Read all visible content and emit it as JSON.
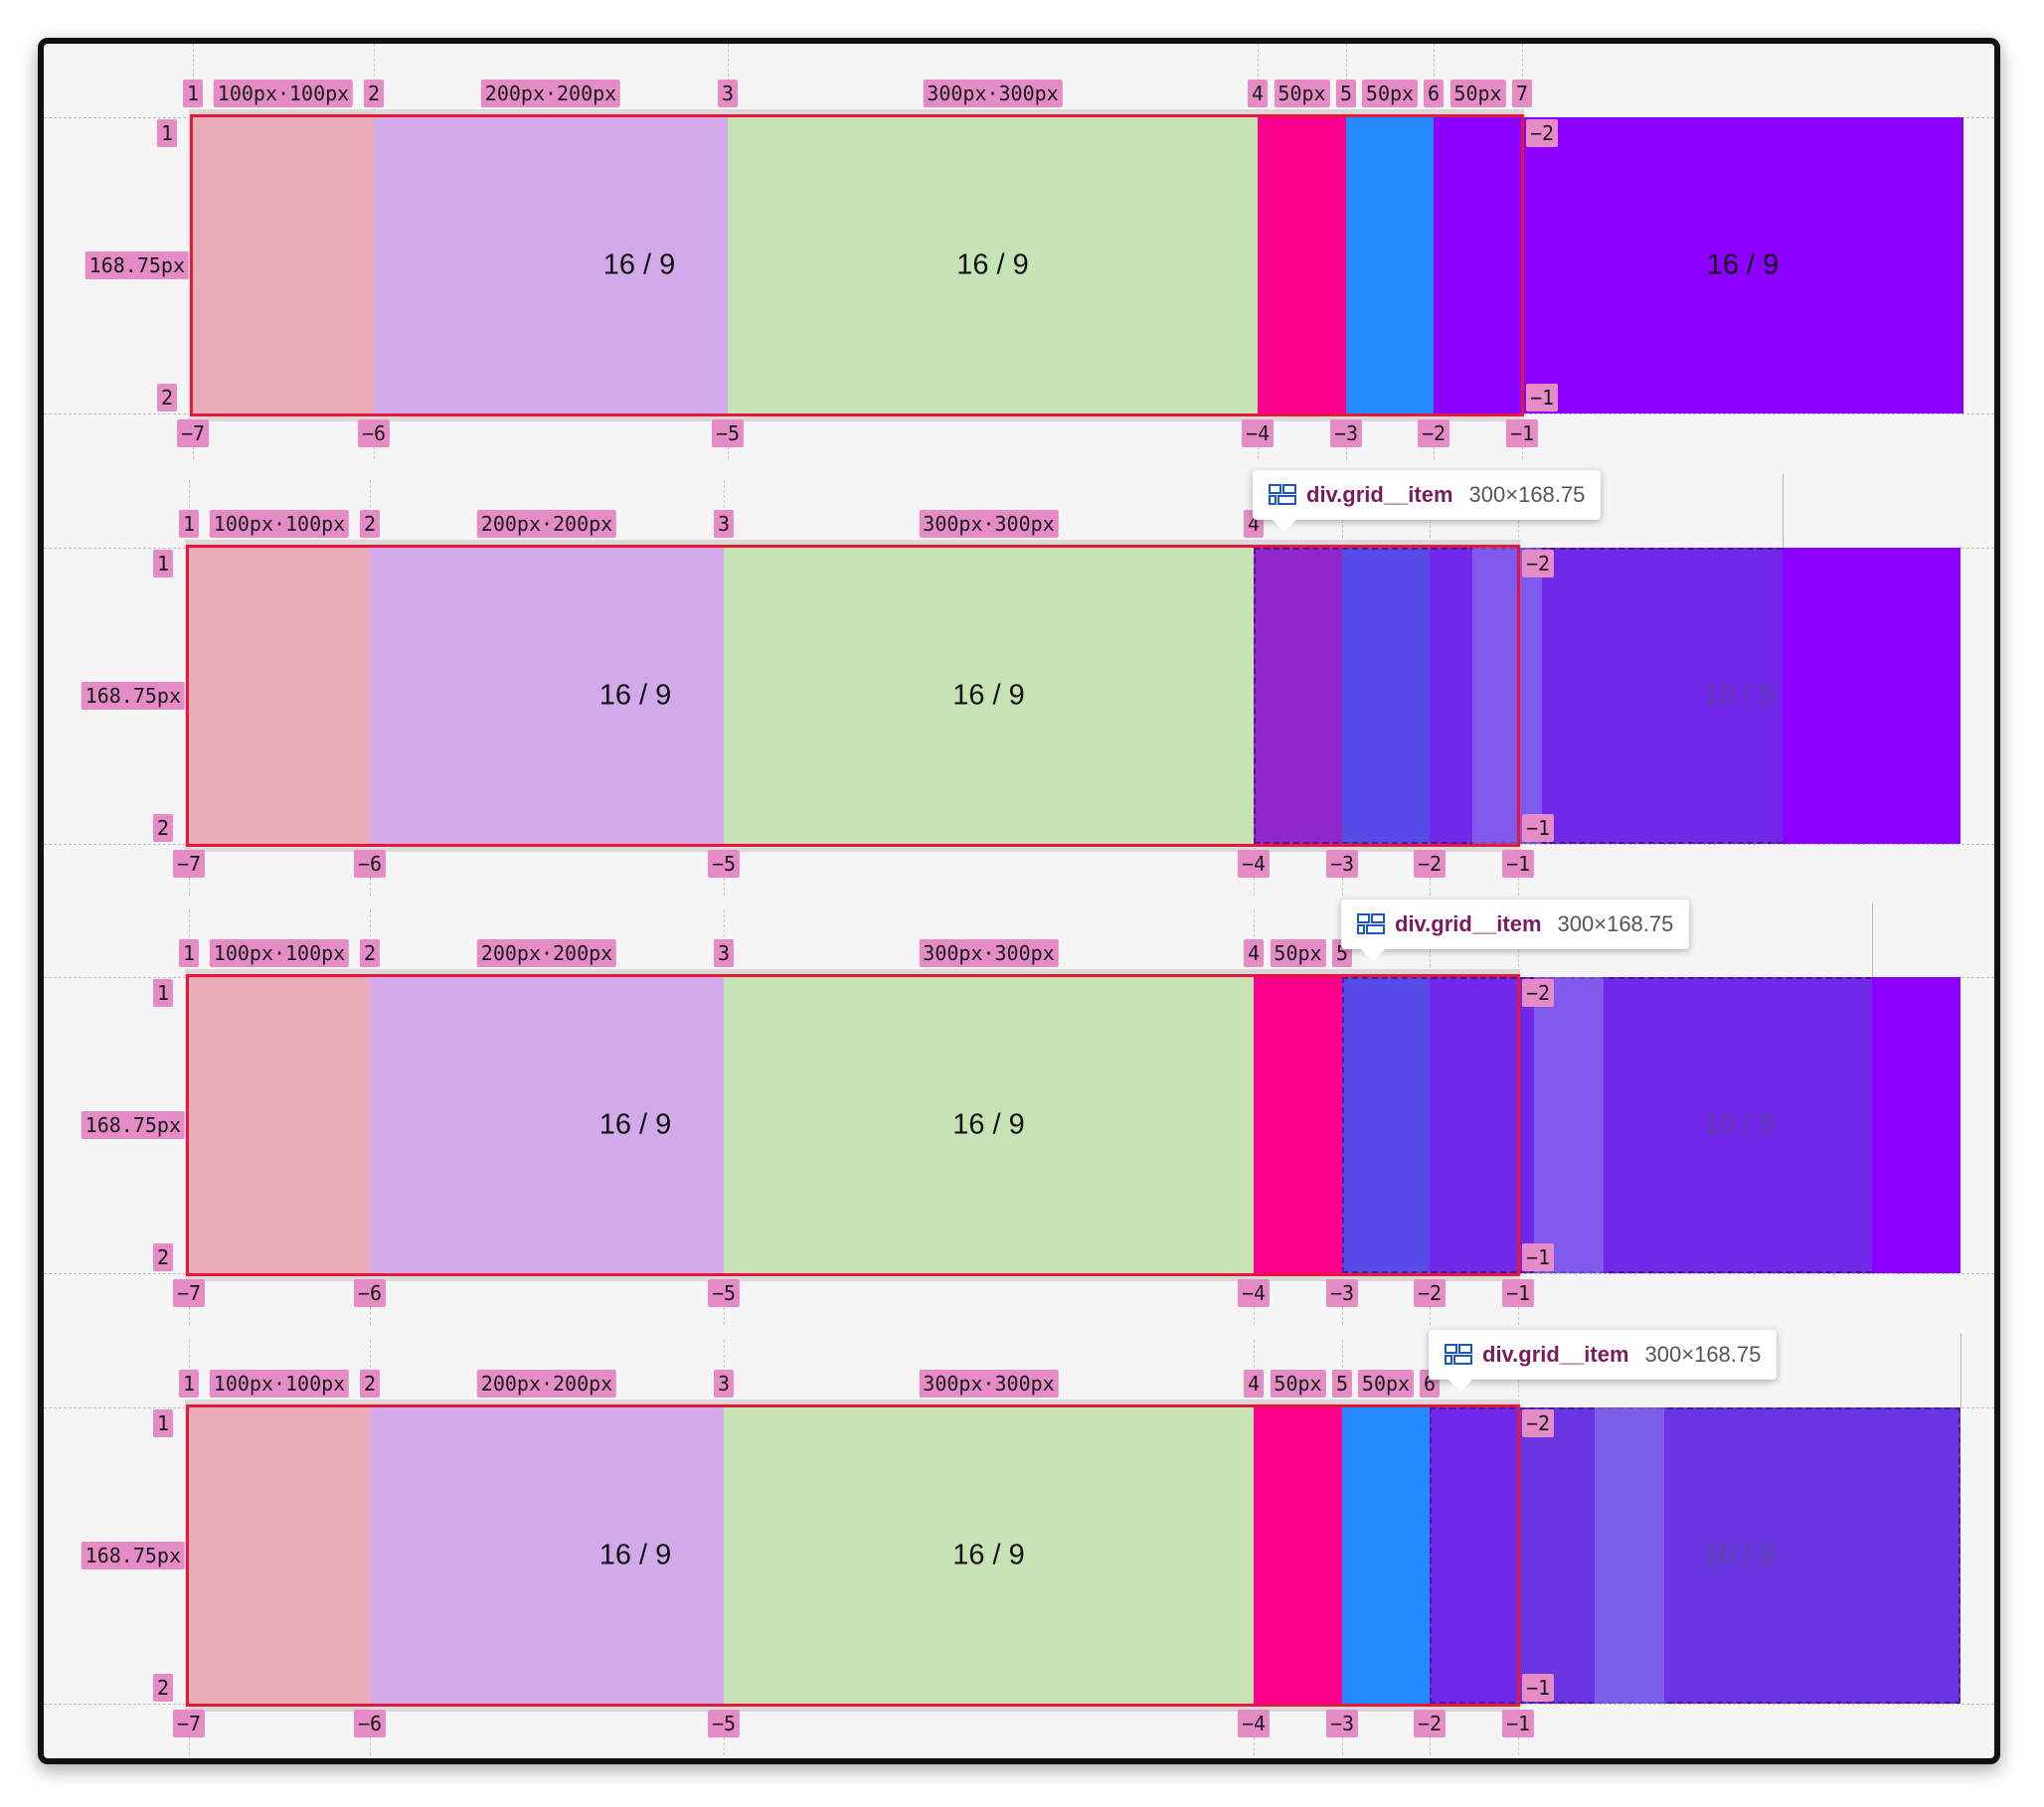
{
  "ruler": {
    "col_lines_pos": [
      "1",
      "2",
      "3",
      "4",
      "5",
      "6",
      "7"
    ],
    "col_lines_neg": [
      "−7",
      "−6",
      "−5",
      "−4",
      "−3",
      "−2",
      "−1"
    ],
    "row_lines_pos": [
      "1",
      "2"
    ],
    "row_lines_neg": [
      "−2",
      "−1"
    ],
    "track_sizes": [
      "100px·100px",
      "200px·200px",
      "300px·300px",
      "50px",
      "50px",
      "50px"
    ],
    "row_size": "168.75px"
  },
  "item_label": "16 / 9",
  "tooltip": {
    "selector": "div.grid__item",
    "size": "300×168.75",
    "icon": "grid-layout-icon"
  },
  "colors": {
    "pink": "#ebadb9",
    "lavender": "#d3aae9",
    "green": "#c7e3b6",
    "magenta": "#fa008c",
    "blue": "#2588fe",
    "violet": "#8b00ff",
    "overlay": "#6a35e0",
    "label_bg": "#e58cc6",
    "outline": "#e8173a"
  },
  "panels": [
    {
      "hovered": "none",
      "track_labels_shown": [
        0,
        1,
        2,
        3,
        4,
        5
      ]
    },
    {
      "hovered": "col4",
      "track_labels_shown": [
        0,
        1,
        2
      ]
    },
    {
      "hovered": "col5",
      "track_labels_shown": [
        0,
        1,
        2,
        3
      ]
    },
    {
      "hovered": "col6",
      "track_labels_shown": [
        0,
        1,
        2,
        3,
        4
      ]
    }
  ]
}
